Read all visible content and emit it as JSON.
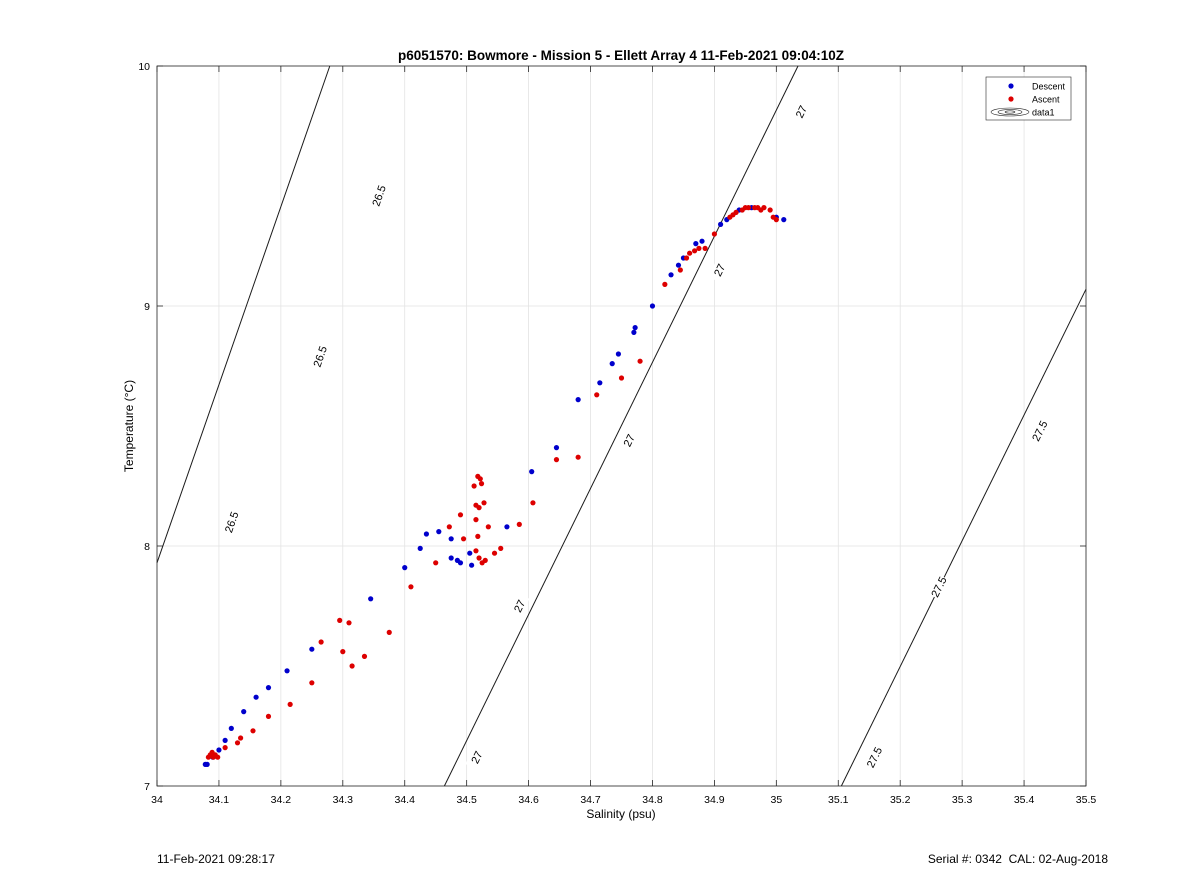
{
  "chart_data": {
    "type": "scatter",
    "title": "p6051570: Bowmore - Mission 5 - Ellett Array 4 11-Feb-2021 09:04:10Z",
    "xlabel": "Salinity (psu)",
    "ylabel": "Temperature (°C)",
    "xlim": [
      34,
      35.5
    ],
    "ylim": [
      7,
      10
    ],
    "xticks": [
      "34",
      "34.1",
      "34.2",
      "34.3",
      "34.4",
      "34.5",
      "34.6",
      "34.7",
      "34.8",
      "34.9",
      "35",
      "35.1",
      "35.2",
      "35.3",
      "35.4",
      "35.5"
    ],
    "yticks": [
      "7",
      "8",
      "9",
      "10"
    ],
    "grid": true,
    "legend_position": "top-right",
    "legend": [
      {
        "label": "Descent",
        "color": "#0000cc",
        "marker": "dot"
      },
      {
        "label": "Ascent",
        "color": "#dd0000",
        "marker": "dot"
      },
      {
        "label": "data1",
        "marker": "contour"
      }
    ],
    "series": [
      {
        "name": "Descent",
        "color": "#0000cc",
        "points": [
          [
            34.078,
            7.09
          ],
          [
            34.081,
            7.09
          ],
          [
            34.09,
            7.12
          ],
          [
            34.1,
            7.15
          ],
          [
            34.11,
            7.19
          ],
          [
            34.12,
            7.24
          ],
          [
            34.14,
            7.31
          ],
          [
            34.16,
            7.37
          ],
          [
            34.18,
            7.41
          ],
          [
            34.21,
            7.48
          ],
          [
            34.25,
            7.57
          ],
          [
            34.345,
            7.78
          ],
          [
            34.4,
            7.91
          ],
          [
            34.425,
            7.99
          ],
          [
            34.435,
            8.05
          ],
          [
            34.455,
            8.06
          ],
          [
            34.475,
            8.03
          ],
          [
            34.475,
            7.95
          ],
          [
            34.485,
            7.94
          ],
          [
            34.49,
            7.93
          ],
          [
            34.505,
            7.97
          ],
          [
            34.508,
            7.92
          ],
          [
            34.565,
            8.08
          ],
          [
            34.605,
            8.31
          ],
          [
            34.645,
            8.41
          ],
          [
            34.68,
            8.61
          ],
          [
            34.715,
            8.68
          ],
          [
            34.735,
            8.76
          ],
          [
            34.745,
            8.8
          ],
          [
            34.77,
            8.89
          ],
          [
            34.772,
            8.91
          ],
          [
            34.8,
            9.0
          ],
          [
            34.83,
            9.13
          ],
          [
            34.842,
            9.17
          ],
          [
            34.85,
            9.2
          ],
          [
            34.87,
            9.26
          ],
          [
            34.88,
            9.27
          ],
          [
            34.91,
            9.34
          ],
          [
            34.92,
            9.36
          ],
          [
            34.94,
            9.4
          ],
          [
            34.96,
            9.41
          ],
          [
            35.0,
            9.37
          ],
          [
            35.012,
            9.36
          ]
        ]
      },
      {
        "name": "Ascent",
        "color": "#dd0000",
        "points": [
          [
            34.083,
            7.12
          ],
          [
            34.086,
            7.13
          ],
          [
            34.089,
            7.14
          ],
          [
            34.091,
            7.12
          ],
          [
            34.094,
            7.13
          ],
          [
            34.098,
            7.12
          ],
          [
            34.11,
            7.16
          ],
          [
            34.13,
            7.18
          ],
          [
            34.135,
            7.2
          ],
          [
            34.155,
            7.23
          ],
          [
            34.18,
            7.29
          ],
          [
            34.215,
            7.34
          ],
          [
            34.25,
            7.43
          ],
          [
            34.265,
            7.6
          ],
          [
            34.295,
            7.69
          ],
          [
            34.3,
            7.56
          ],
          [
            34.31,
            7.68
          ],
          [
            34.315,
            7.5
          ],
          [
            34.335,
            7.54
          ],
          [
            34.375,
            7.64
          ],
          [
            34.41,
            7.83
          ],
          [
            34.45,
            7.93
          ],
          [
            34.472,
            8.08
          ],
          [
            34.49,
            8.13
          ],
          [
            34.495,
            8.03
          ],
          [
            34.512,
            8.25
          ],
          [
            34.515,
            8.11
          ],
          [
            34.515,
            8.17
          ],
          [
            34.518,
            8.29
          ],
          [
            34.522,
            8.28
          ],
          [
            34.524,
            8.26
          ],
          [
            34.52,
            8.16
          ],
          [
            34.528,
            8.18
          ],
          [
            34.518,
            8.04
          ],
          [
            34.515,
            7.98
          ],
          [
            34.52,
            7.95
          ],
          [
            34.525,
            7.93
          ],
          [
            34.53,
            7.94
          ],
          [
            34.535,
            8.08
          ],
          [
            34.545,
            7.97
          ],
          [
            34.555,
            7.99
          ],
          [
            34.585,
            8.09
          ],
          [
            34.607,
            8.18
          ],
          [
            34.645,
            8.36
          ],
          [
            34.68,
            8.37
          ],
          [
            34.71,
            8.63
          ],
          [
            34.75,
            8.7
          ],
          [
            34.78,
            8.77
          ],
          [
            34.82,
            9.09
          ],
          [
            34.845,
            9.15
          ],
          [
            34.855,
            9.2
          ],
          [
            34.86,
            9.22
          ],
          [
            34.868,
            9.23
          ],
          [
            34.875,
            9.24
          ],
          [
            34.885,
            9.24
          ],
          [
            34.9,
            9.3
          ],
          [
            34.925,
            9.37
          ],
          [
            34.93,
            9.38
          ],
          [
            34.935,
            9.39
          ],
          [
            34.945,
            9.4
          ],
          [
            34.95,
            9.41
          ],
          [
            34.955,
            9.41
          ],
          [
            34.965,
            9.41
          ],
          [
            34.97,
            9.41
          ],
          [
            34.975,
            9.4
          ],
          [
            34.98,
            9.41
          ],
          [
            34.99,
            9.4
          ],
          [
            34.995,
            9.37
          ],
          [
            35.0,
            9.36
          ]
        ]
      }
    ],
    "isopycnals": [
      {
        "label": "26.5",
        "points": [
          [
            34.0,
            7.93
          ],
          [
            34.279,
            10.0
          ]
        ],
        "labels_at": [
          [
            34.12,
            8.1
          ],
          [
            34.263,
            8.79
          ],
          [
            34.358,
            9.46
          ]
        ]
      },
      {
        "label": "27",
        "points": [
          [
            34.464,
            7.0
          ],
          [
            35.035,
            10.0
          ]
        ],
        "labels_at": [
          [
            34.516,
            7.12
          ],
          [
            34.585,
            7.75
          ],
          [
            34.762,
            8.44
          ],
          [
            34.908,
            9.15
          ],
          [
            35.04,
            9.81
          ]
        ]
      },
      {
        "label": "27.5",
        "points": [
          [
            35.105,
            7.0
          ],
          [
            35.5,
            9.07
          ]
        ],
        "labels_at": [
          [
            35.158,
            7.12
          ],
          [
            35.262,
            7.83
          ],
          [
            35.425,
            8.48
          ]
        ]
      }
    ]
  },
  "footer": {
    "timestamp": "11-Feb-2021 09:28:17",
    "serial": "Serial #: 0342  CAL: 02-Aug-2018"
  }
}
